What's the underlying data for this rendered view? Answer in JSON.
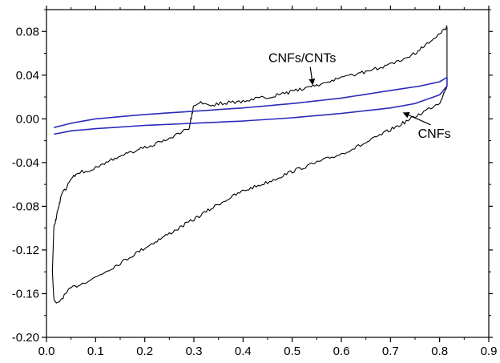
{
  "chart_data": {
    "type": "line",
    "title": "",
    "xlabel": "",
    "ylabel": "",
    "xlim": [
      0.0,
      0.9
    ],
    "ylim": [
      -0.2,
      0.1
    ],
    "x_ticks": [
      "0.0",
      "0.1",
      "0.2",
      "0.3",
      "0.4",
      "0.5",
      "0.6",
      "0.7",
      "0.8",
      "0.9"
    ],
    "y_ticks": [
      "-0.20",
      "-0.16",
      "-0.12",
      "-0.08",
      "-0.04",
      "0.00",
      "0.04",
      "0.08"
    ],
    "grid": false,
    "legend": "none",
    "series": [
      {
        "name": "CNFs/CNTs",
        "color": "#000000",
        "x": [
          0.815,
          0.8,
          0.75,
          0.7,
          0.65,
          0.6,
          0.55,
          0.5,
          0.45,
          0.4,
          0.35,
          0.33,
          0.31,
          0.3,
          0.29,
          0.25,
          0.2,
          0.15,
          0.1,
          0.06,
          0.03,
          0.015,
          0.012,
          0.015,
          0.02,
          0.05,
          0.1,
          0.15,
          0.2,
          0.25,
          0.3,
          0.35,
          0.4,
          0.45,
          0.5,
          0.55,
          0.6,
          0.65,
          0.7,
          0.75,
          0.8,
          0.815,
          0.815
        ],
        "y": [
          0.084,
          0.078,
          0.06,
          0.05,
          0.043,
          0.038,
          0.031,
          0.025,
          0.02,
          0.016,
          0.014,
          0.012,
          0.015,
          0.012,
          -0.008,
          -0.018,
          -0.026,
          -0.034,
          -0.045,
          -0.05,
          -0.07,
          -0.1,
          -0.14,
          -0.165,
          -0.17,
          -0.155,
          -0.145,
          -0.132,
          -0.118,
          -0.105,
          -0.092,
          -0.078,
          -0.066,
          -0.058,
          -0.048,
          -0.04,
          -0.032,
          -0.022,
          -0.01,
          0.002,
          0.015,
          0.03,
          0.084
        ]
      },
      {
        "name": "CNFs",
        "color": "#2b2bbb",
        "x": [
          0.015,
          0.05,
          0.1,
          0.2,
          0.3,
          0.4,
          0.5,
          0.6,
          0.7,
          0.76,
          0.8,
          0.815,
          0.815,
          0.8,
          0.75,
          0.7,
          0.6,
          0.5,
          0.4,
          0.3,
          0.2,
          0.1,
          0.05,
          0.015
        ],
        "y": [
          -0.008,
          -0.004,
          0.0,
          0.004,
          0.007,
          0.01,
          0.014,
          0.019,
          0.026,
          0.03,
          0.034,
          0.038,
          0.03,
          0.022,
          0.014,
          0.01,
          0.005,
          0.001,
          -0.002,
          -0.004,
          -0.006,
          -0.009,
          -0.011,
          -0.014
        ]
      }
    ],
    "annotations": [
      {
        "text": "CNFs/CNTs",
        "target_series": "CNFs/CNTs",
        "point": [
          0.54,
          0.03
        ]
      },
      {
        "text": "CNFs",
        "target_series": "CNFs",
        "point": [
          0.72,
          0.007
        ]
      }
    ]
  }
}
